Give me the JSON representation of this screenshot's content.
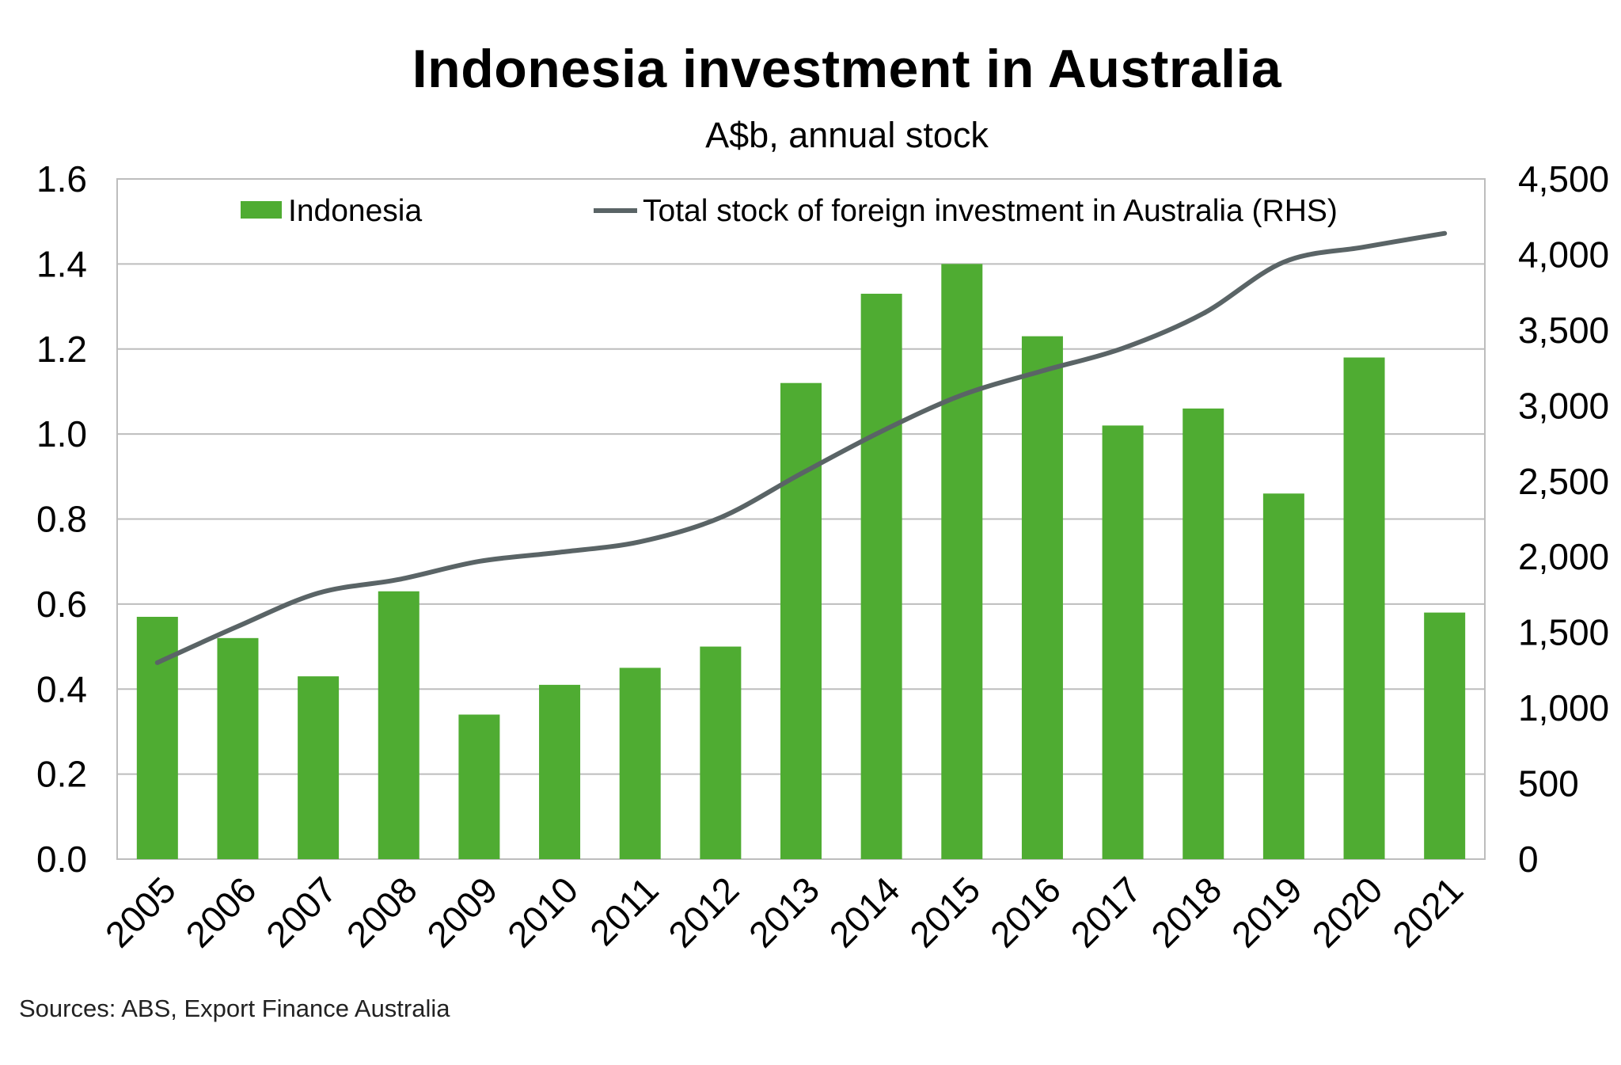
{
  "chart_data": {
    "type": "bar",
    "title": "Indonesia investment in Australia",
    "subtitle": "A$b, annual stock",
    "categories": [
      "2005",
      "2006",
      "2007",
      "2008",
      "2009",
      "2010",
      "2011",
      "2012",
      "2013",
      "2014",
      "2015",
      "2016",
      "2017",
      "2018",
      "2019",
      "2020",
      "2021"
    ],
    "series": [
      {
        "name": "Indonesia",
        "type": "bar",
        "axis": "left",
        "color": "#4fac32",
        "values": [
          0.57,
          0.52,
          0.43,
          0.63,
          0.34,
          0.41,
          0.45,
          0.5,
          1.12,
          1.33,
          1.4,
          1.23,
          1.02,
          1.06,
          0.86,
          1.18,
          0.58
        ]
      },
      {
        "name": "Total stock of foreign investment in Australia (RHS)",
        "type": "line",
        "axis": "right",
        "color": "#5a6466",
        "values": [
          1300,
          1540,
          1760,
          1850,
          1970,
          2030,
          2100,
          2260,
          2550,
          2830,
          3070,
          3230,
          3380,
          3610,
          3950,
          4050,
          4140
        ]
      }
    ],
    "y_left": {
      "min": 0,
      "max": 1.6,
      "ticks": [
        "0.0",
        "0.2",
        "0.4",
        "0.6",
        "0.8",
        "1.0",
        "1.2",
        "1.4",
        "1.6"
      ]
    },
    "y_right": {
      "min": 0,
      "max": 4500,
      "ticks": [
        "0",
        "500",
        "1,000",
        "1,500",
        "2,000",
        "2,500",
        "3,000",
        "3,500",
        "4,000",
        "4,500"
      ]
    },
    "grid": true,
    "legend_position": "top"
  },
  "source_note": "Sources: ABS, Export Finance Australia"
}
